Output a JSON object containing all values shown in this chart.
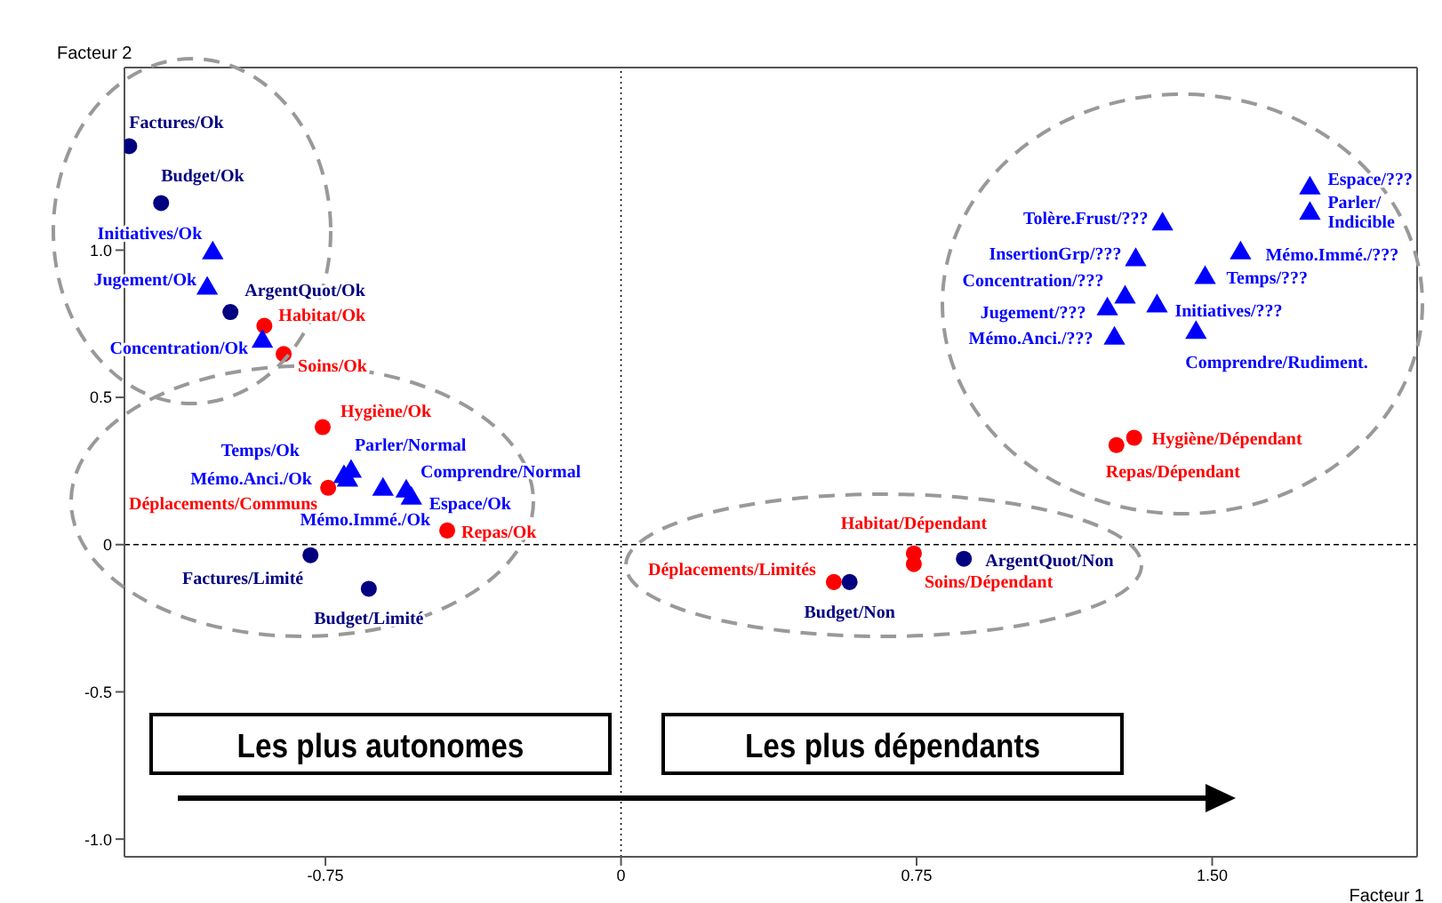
{
  "chart_data": {
    "type": "scatter",
    "xlabel": "Facteur 1",
    "ylabel": "Facteur 2",
    "xlim": [
      -1.26,
      2.02
    ],
    "ylim": [
      -1.06,
      1.62
    ],
    "xticks": [
      -0.75,
      0,
      0.75,
      {
        "value": 1.5,
        "label": "1.50"
      }
    ],
    "yticks": [
      {
        "value": -1,
        "label": "-1.0"
      },
      -0.5,
      0,
      0.5,
      {
        "value": 1,
        "label": "1.0"
      }
    ],
    "grid": false,
    "legend": false,
    "ref_lines": [
      {
        "axis": "x",
        "value": 0,
        "line_style": "dotted",
        "color": "#000000"
      },
      {
        "axis": "y",
        "value": 0,
        "line_style": "dashed",
        "color": "#000000"
      }
    ],
    "annotations": [
      "Les plus autonomes",
      "Les plus dépendants"
    ],
    "series": [
      {
        "color": "#000080",
        "marker": "circle",
        "x": [
          -1.248,
          -1.167,
          -0.991,
          -0.788,
          -0.64,
          0.58,
          0.87
        ],
        "values": [
          1.353,
          1.16,
          0.79,
          -0.036,
          -0.15,
          -0.127,
          -0.048
        ],
        "value_labels": [
          "Factures/Ok",
          "Budget/Ok",
          "ArgentQuot/Ok",
          "Factures/Limité",
          "Budget/Limité",
          "Budget/Non",
          "ArgentQuot/Non"
        ]
      },
      {
        "color": "#ff0000",
        "marker": "circle",
        "x": [
          -0.905,
          -0.856,
          -0.757,
          -0.743,
          -0.441,
          0.54,
          0.743,
          0.743,
          1.302,
          1.257
        ],
        "values": [
          0.743,
          0.647,
          0.399,
          0.193,
          0.048,
          -0.127,
          -0.03,
          -0.066,
          0.363,
          0.338
        ],
        "value_labels": [
          "Habitat/Ok",
          "Soins/Ok",
          "Hygiène/Ok",
          "Déplacements/Communs",
          "Repas/Ok",
          "Déplacements/Limités",
          "Habitat/Dépendant",
          "Soins/Dépendant",
          "Hygiène/Dépendant",
          "Repas/Dépendant"
        ]
      },
      {
        "color": "#0000ff",
        "marker": "triangle",
        "x": [
          -1.036,
          -1.05,
          -0.91,
          -0.703,
          -0.685,
          -0.694,
          -0.604,
          -0.545,
          -0.532,
          1.748,
          1.748,
          1.572,
          1.482,
          1.36,
          1.374,
          1.306,
          1.279,
          1.234,
          1.252,
          1.459
        ],
        "values": [
          0.99,
          0.87,
          0.69,
          0.23,
          0.248,
          0.218,
          0.187,
          0.181,
          0.157,
          1.21,
          1.124,
          0.99,
          0.906,
          0.81,
          1.088,
          0.967,
          0.84,
          0.8,
          0.7,
          0.72
        ],
        "value_labels": [
          "Initiatives/Ok",
          "Jugement/Ok",
          "Concentration/Ok",
          "Temps/Ok",
          "Parler/Normal",
          "Mémo.Anci./Ok",
          "Mémo.Immé./Ok",
          "Comprendre/Normal",
          "Espace/Ok",
          "Espace/???",
          "Parler/Indicible",
          "Mémo.Immé./???",
          "Temps/???",
          "Initiatives/???",
          "Tolère.Frust/???",
          "InsertionGrp/???",
          "Concentration/???",
          "Jugement/???",
          "Mémo.Anci./???",
          "Comprendre/Rudiment."
        ]
      }
    ]
  }
}
